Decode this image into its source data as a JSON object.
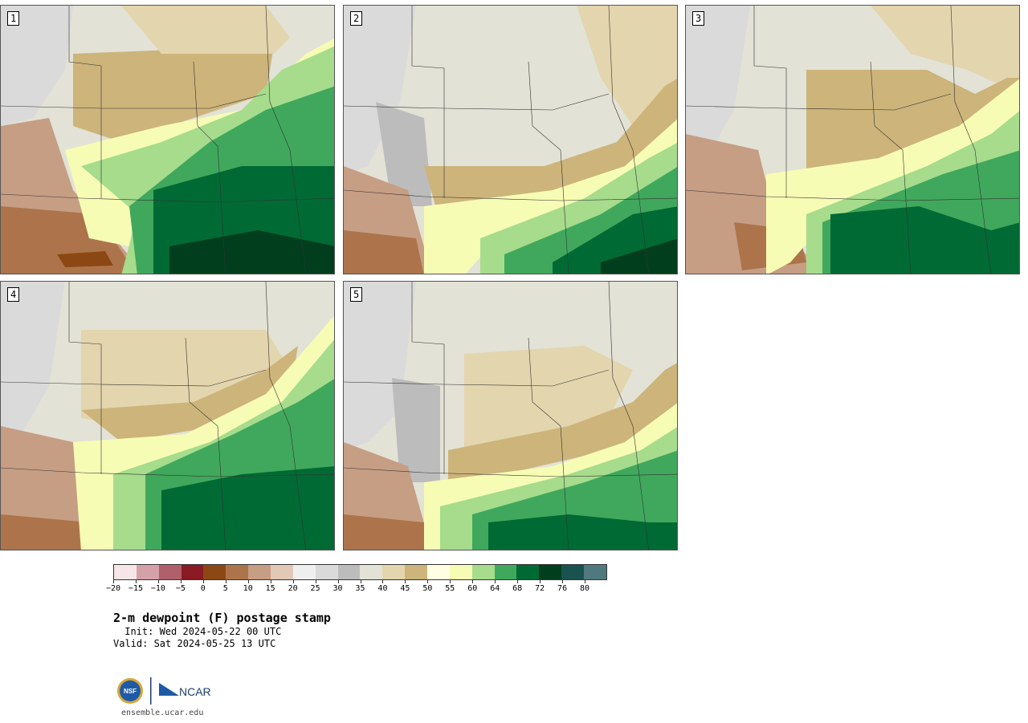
{
  "panels": [
    {
      "label": "1",
      "theme": "p1"
    },
    {
      "label": "2",
      "theme": "p2"
    },
    {
      "label": "3",
      "theme": "p3"
    },
    {
      "label": "4",
      "theme": "p4"
    },
    {
      "label": "5",
      "theme": "p5"
    }
  ],
  "colorbar": {
    "colors": [
      "#f6e6e8",
      "#d4a1a8",
      "#b0606a",
      "#8a1a24",
      "#8c4814",
      "#ad744c",
      "#c69e84",
      "#e2c8b6",
      "#efefef",
      "#dadada",
      "#bcbcbc",
      "#e2e2d6",
      "#e3d5ad",
      "#cdb47a",
      "#fffde4",
      "#f7fcb4",
      "#a6dc8c",
      "#40a85c",
      "#006a34",
      "#003e1e",
      "#1a5250",
      "#50797f"
    ],
    "ticks": [
      "−20",
      "−15",
      "−10",
      "−5",
      "0",
      "5",
      "10",
      "15",
      "20",
      "25",
      "30",
      "35",
      "40",
      "45",
      "50",
      "55",
      "60",
      "64",
      "68",
      "72",
      "76",
      "80"
    ]
  },
  "title": "2-m dewpoint (F) postage stamp",
  "init": " Init: Wed 2024-05-22 00 UTC",
  "valid": "Valid: Sat 2024-05-25 13 UTC",
  "logos": {
    "nsf": "NSF",
    "ncar": "NCAR"
  },
  "site": "ensemble.ucar.edu"
}
